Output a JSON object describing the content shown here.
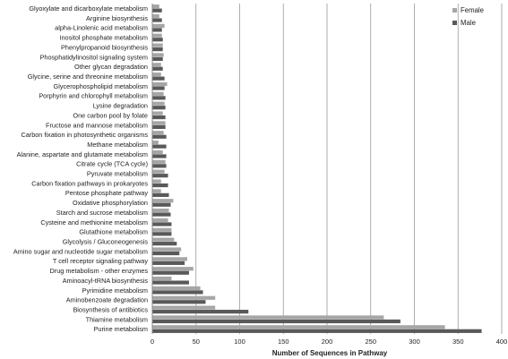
{
  "chart_data": {
    "type": "bar",
    "orientation": "horizontal",
    "categories": [
      "Purine metabolism",
      "Thiamine metabolism",
      "Biosynthesis of antibiotics",
      "Aminobenzoate degradation",
      "Pyrimidine metabolism",
      "Aminoacyl-tRNA biosynthesis",
      "Drug metabolism - other enzymes",
      "T cell receptor signaling pathway",
      "Amino sugar and nucleotide sugar metabolism",
      "Glycolysis / Gluconeogenesis",
      "Glutathione metabolism",
      "Cysteine and methionine metabolism",
      "Starch and sucrose metabolism",
      "Oxidative phosphorylation",
      "Pentose phosphate pathway",
      "Carbon fixation pathways in prokaryotes",
      "Pyruvate metabolism",
      "Citrate cycle (TCA cycle)",
      "Alanine, aspartate and glutamate metabolism",
      "Methane metabolism",
      "Carbon fixation in photosynthetic organisms",
      "Fructose and mannose metabolism",
      "One carbon pool by folate",
      "Lysine degradation",
      "Porphyrin and chlorophyll metabolism",
      "Glycerophospholipid metabolism",
      "Glycine, serine and threonine metabolism",
      "Other glycan degradation",
      "Phosphatidylinositol signaling system",
      "Phenylpropanoid biosynthesis",
      "Inositol phosphate metabolism",
      "alpha-Linolenic acid metabolism",
      "Arginine biosynthesis",
      "Glyoxylate and dicarboxylate metabolism"
    ],
    "series": [
      {
        "name": "Female",
        "color": "#a6a6a6",
        "values": [
          335,
          265,
          72,
          72,
          55,
          22,
          47,
          40,
          33,
          25,
          22,
          18,
          19,
          24,
          10,
          10,
          14,
          15,
          12,
          7,
          13,
          15,
          12,
          14,
          13,
          17,
          10,
          10,
          13,
          12,
          11,
          14,
          8,
          8
        ]
      },
      {
        "name": "Male",
        "color": "#595959",
        "values": [
          377,
          284,
          110,
          61,
          58,
          42,
          42,
          37,
          31,
          28,
          22,
          22,
          21,
          21,
          19,
          18,
          18,
          16,
          16,
          16,
          16,
          15,
          15,
          15,
          15,
          14,
          14,
          12,
          12,
          12,
          12,
          11,
          11,
          11
        ]
      }
    ],
    "xlabel": "Number of Sequences in Pathway",
    "ylabel": "",
    "title": "",
    "xlim": [
      0,
      400
    ],
    "xticks": [
      0,
      50,
      100,
      150,
      200,
      250,
      300,
      350,
      400
    ],
    "grid": "vertical",
    "legend": "top-right"
  }
}
